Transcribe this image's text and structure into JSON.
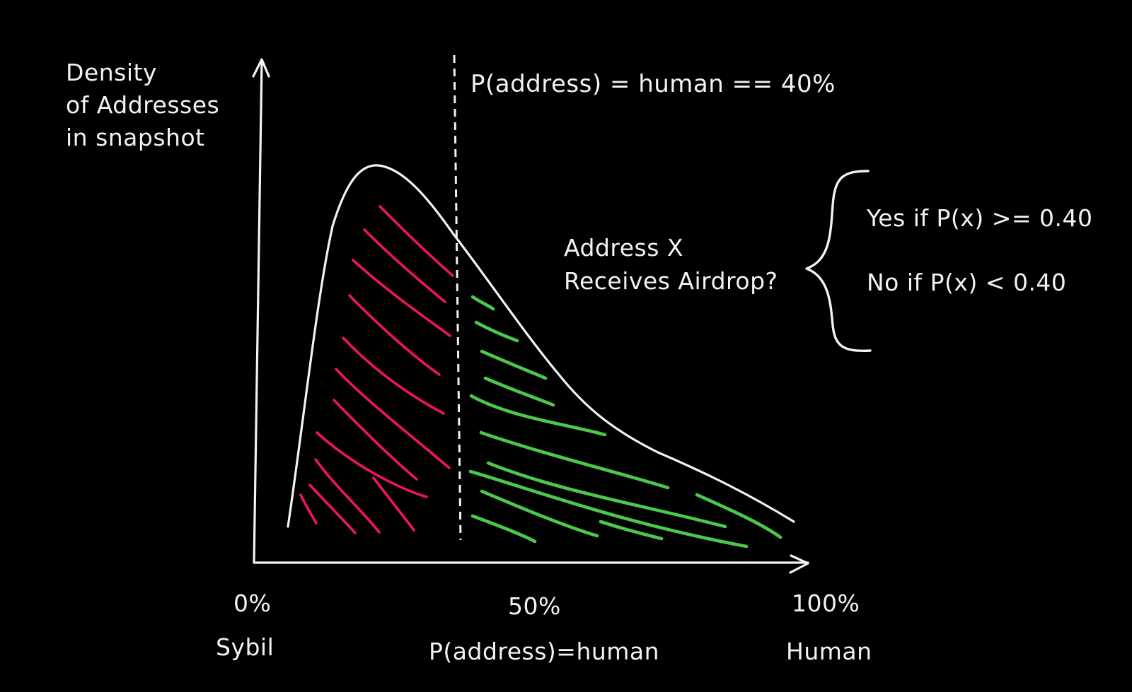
{
  "y_axis_label": [
    "Density",
    "of Addresses",
    "in snapshot"
  ],
  "threshold_label": "P(address) = human == 40%",
  "decision": {
    "question": [
      "Address X",
      "Receives Airdrop?"
    ],
    "yes_rule": "Yes if P(x) >= 0.40",
    "no_rule": "No if P(x) < 0.40"
  },
  "x_ticks": {
    "left": "0%",
    "middle": "50%",
    "right": "100%"
  },
  "x_axis_labels": {
    "left": "Sybil",
    "middle": "P(address)=human",
    "right": "Human"
  },
  "colors": {
    "background": "#000000",
    "ink": "#f2f2f2",
    "below_threshold_hatch": "#f0145a",
    "above_threshold_hatch": "#4cc94a"
  }
}
